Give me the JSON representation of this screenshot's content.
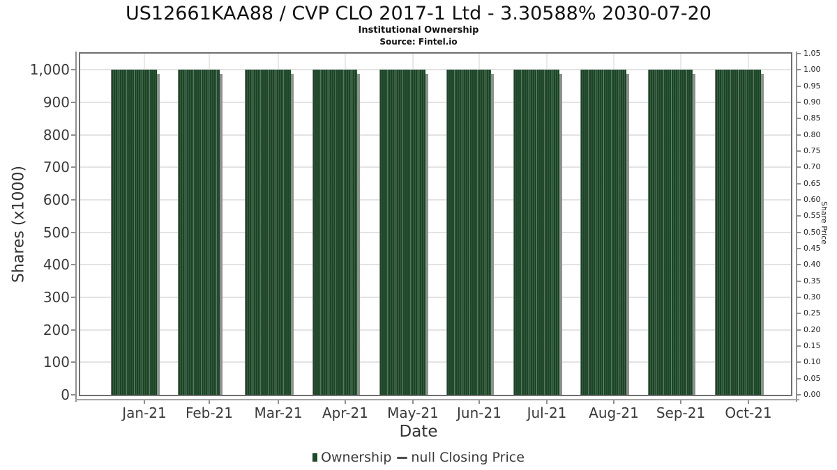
{
  "header": {
    "title": "US12661KAA88 / CVP CLO 2017-1 Ltd - 3.30588% 2030-07-20",
    "subtitle": "Institutional Ownership",
    "source": "Source: Fintel.io"
  },
  "chart_data": {
    "type": "bar",
    "title": "US12661KAA88 / CVP CLO 2017-1 Ltd - 3.30588% 2030-07-20",
    "subtitle": "Institutional Ownership",
    "source": "Source: Fintel.io",
    "categories": [
      "Jan-21",
      "Feb-21",
      "Mar-21",
      "Apr-21",
      "May-21",
      "Jun-21",
      "Jul-21",
      "Aug-21",
      "Sep-21",
      "Oct-21"
    ],
    "series": [
      {
        "name": "Ownership",
        "type": "bar",
        "values": [
          1000,
          1000,
          1000,
          1000,
          1000,
          1000,
          1000,
          1000,
          1000,
          1000
        ],
        "color": "#1c4426"
      },
      {
        "name": "null Closing Price",
        "type": "line",
        "values": [],
        "color": "#4a4a4a"
      }
    ],
    "xlabel": "Date",
    "ylabel": "Shares (x1000)",
    "ylabel_right": "Share Price",
    "ylim": [
      0,
      1050
    ],
    "ylim_right": [
      0,
      1.05
    ],
    "yticks": [
      0,
      100,
      200,
      300,
      400,
      500,
      600,
      700,
      800,
      900,
      1000
    ],
    "ytick_labels": [
      "0",
      "100",
      "200",
      "300",
      "400",
      "500",
      "600",
      "700",
      "800",
      "900",
      "1,000"
    ],
    "ytick_labels_right": [
      "0.00",
      "0.05",
      "0.10",
      "0.15",
      "0.20",
      "0.25",
      "0.30",
      "0.35",
      "0.40",
      "0.45",
      "0.50",
      "0.55",
      "0.60",
      "0.65",
      "0.70",
      "0.75",
      "0.80",
      "0.85",
      "0.90",
      "0.95",
      "1.00",
      "1.05"
    ],
    "grid": true,
    "legend_position": "bottom"
  },
  "legend": {
    "items": [
      {
        "label": "Ownership",
        "swatch": "bar",
        "color": "#1d4a29"
      },
      {
        "label": "null Closing Price",
        "swatch": "line",
        "color": "#4a4a4a"
      }
    ]
  },
  "colors": {
    "bar": "#1c4426",
    "bar_stripe": "#3a6647",
    "bar_shadow": "#8f8f8f",
    "grid": "#e3e3e3",
    "plot_border": "#6f6f6f",
    "axis": "#8f8f8f",
    "tick_text": "#3a3a3a",
    "title_text": "#121212"
  }
}
